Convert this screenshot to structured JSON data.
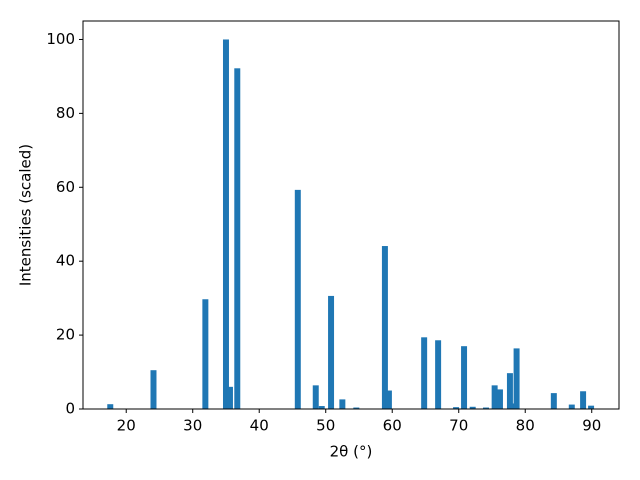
{
  "chart_data": {
    "type": "bar",
    "xlabel": "2θ (°)",
    "ylabel": "Intensities (scaled)",
    "color": "#1f77b4",
    "x": [
      17.6,
      24.1,
      31.9,
      35.0,
      35.6,
      36.7,
      45.8,
      48.5,
      49.4,
      50.8,
      52.5,
      54.6,
      58.9,
      59.5,
      64.8,
      66.9,
      69.6,
      70.8,
      72.1,
      74.1,
      75.4,
      76.2,
      77.7,
      78.3,
      78.7,
      84.3,
      87.0,
      88.7,
      89.9
    ],
    "values": [
      1.3,
      10.5,
      29.7,
      100,
      6.0,
      92.2,
      59.3,
      6.4,
      0.8,
      30.6,
      2.6,
      0.4,
      44.1,
      5.0,
      19.4,
      18.6,
      0.5,
      17.0,
      0.6,
      0.4,
      6.4,
      5.3,
      9.7,
      1.5,
      16.4,
      4.3,
      1.2,
      4.8,
      0.9
    ],
    "xlim": [
      13.5,
      94.1
    ],
    "ylim": [
      0,
      105
    ],
    "xticks": [
      20,
      30,
      40,
      50,
      60,
      70,
      80,
      90
    ],
    "yticks": [
      0,
      20,
      40,
      60,
      80,
      100
    ]
  }
}
